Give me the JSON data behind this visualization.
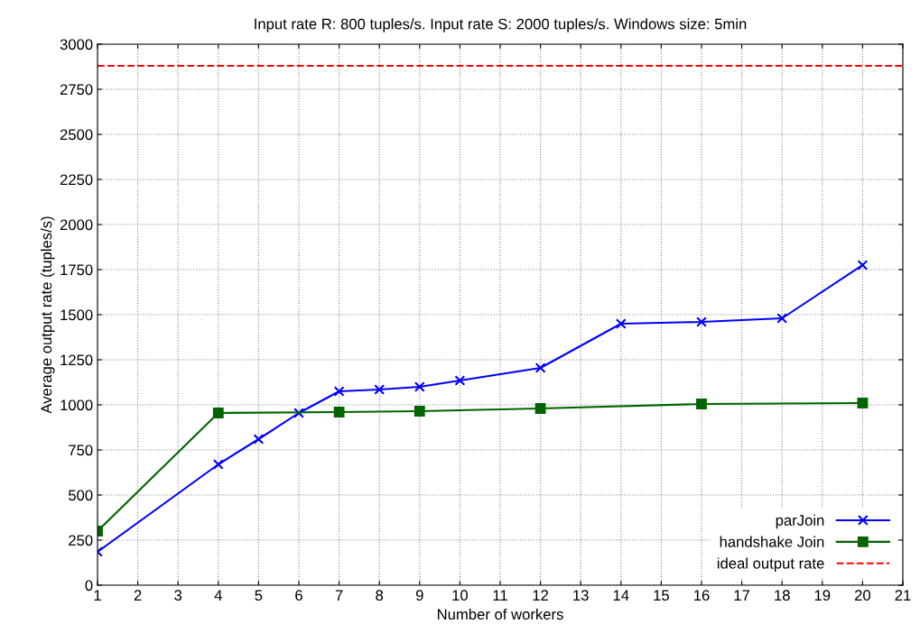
{
  "chart_data": {
    "type": "line",
    "title": "Input rate R: 800 tuples/s. Input rate S: 2000 tuples/s. Windows size: 5min",
    "xlabel": "Number of workers",
    "ylabel": "Average output rate (tuples/s)",
    "series": [
      {
        "name": "parJoin",
        "color": "#0000ff",
        "marker": "cross",
        "x": [
          1,
          4,
          5,
          6,
          7,
          8,
          9,
          10,
          12,
          14,
          16,
          18,
          20
        ],
        "values": [
          185,
          670,
          810,
          955,
          1075,
          1085,
          1100,
          1135,
          1205,
          1450,
          1460,
          1480,
          1775
        ]
      },
      {
        "name": "handshake Join",
        "color": "#006400",
        "marker": "square",
        "x": [
          1,
          4,
          7,
          9,
          12,
          16,
          20
        ],
        "values": [
          300,
          955,
          960,
          965,
          980,
          1005,
          1010
        ]
      }
    ],
    "ref_lines": [
      {
        "axis": "y",
        "value": 2880,
        "label": "ideal output rate",
        "color": "#ff0000",
        "line_style": "dashed"
      }
    ],
    "xlim": [
      1,
      21
    ],
    "xticks": [
      1,
      2,
      3,
      4,
      5,
      6,
      7,
      8,
      9,
      10,
      11,
      12,
      13,
      14,
      15,
      16,
      17,
      18,
      19,
      20,
      21
    ],
    "ylim": [
      0,
      3000
    ],
    "yticks": [
      0,
      250,
      500,
      750,
      1000,
      1250,
      1500,
      1750,
      2000,
      2250,
      2500,
      2750,
      3000
    ],
    "grid": true,
    "legend": "bottom right",
    "line_style": "solid"
  }
}
